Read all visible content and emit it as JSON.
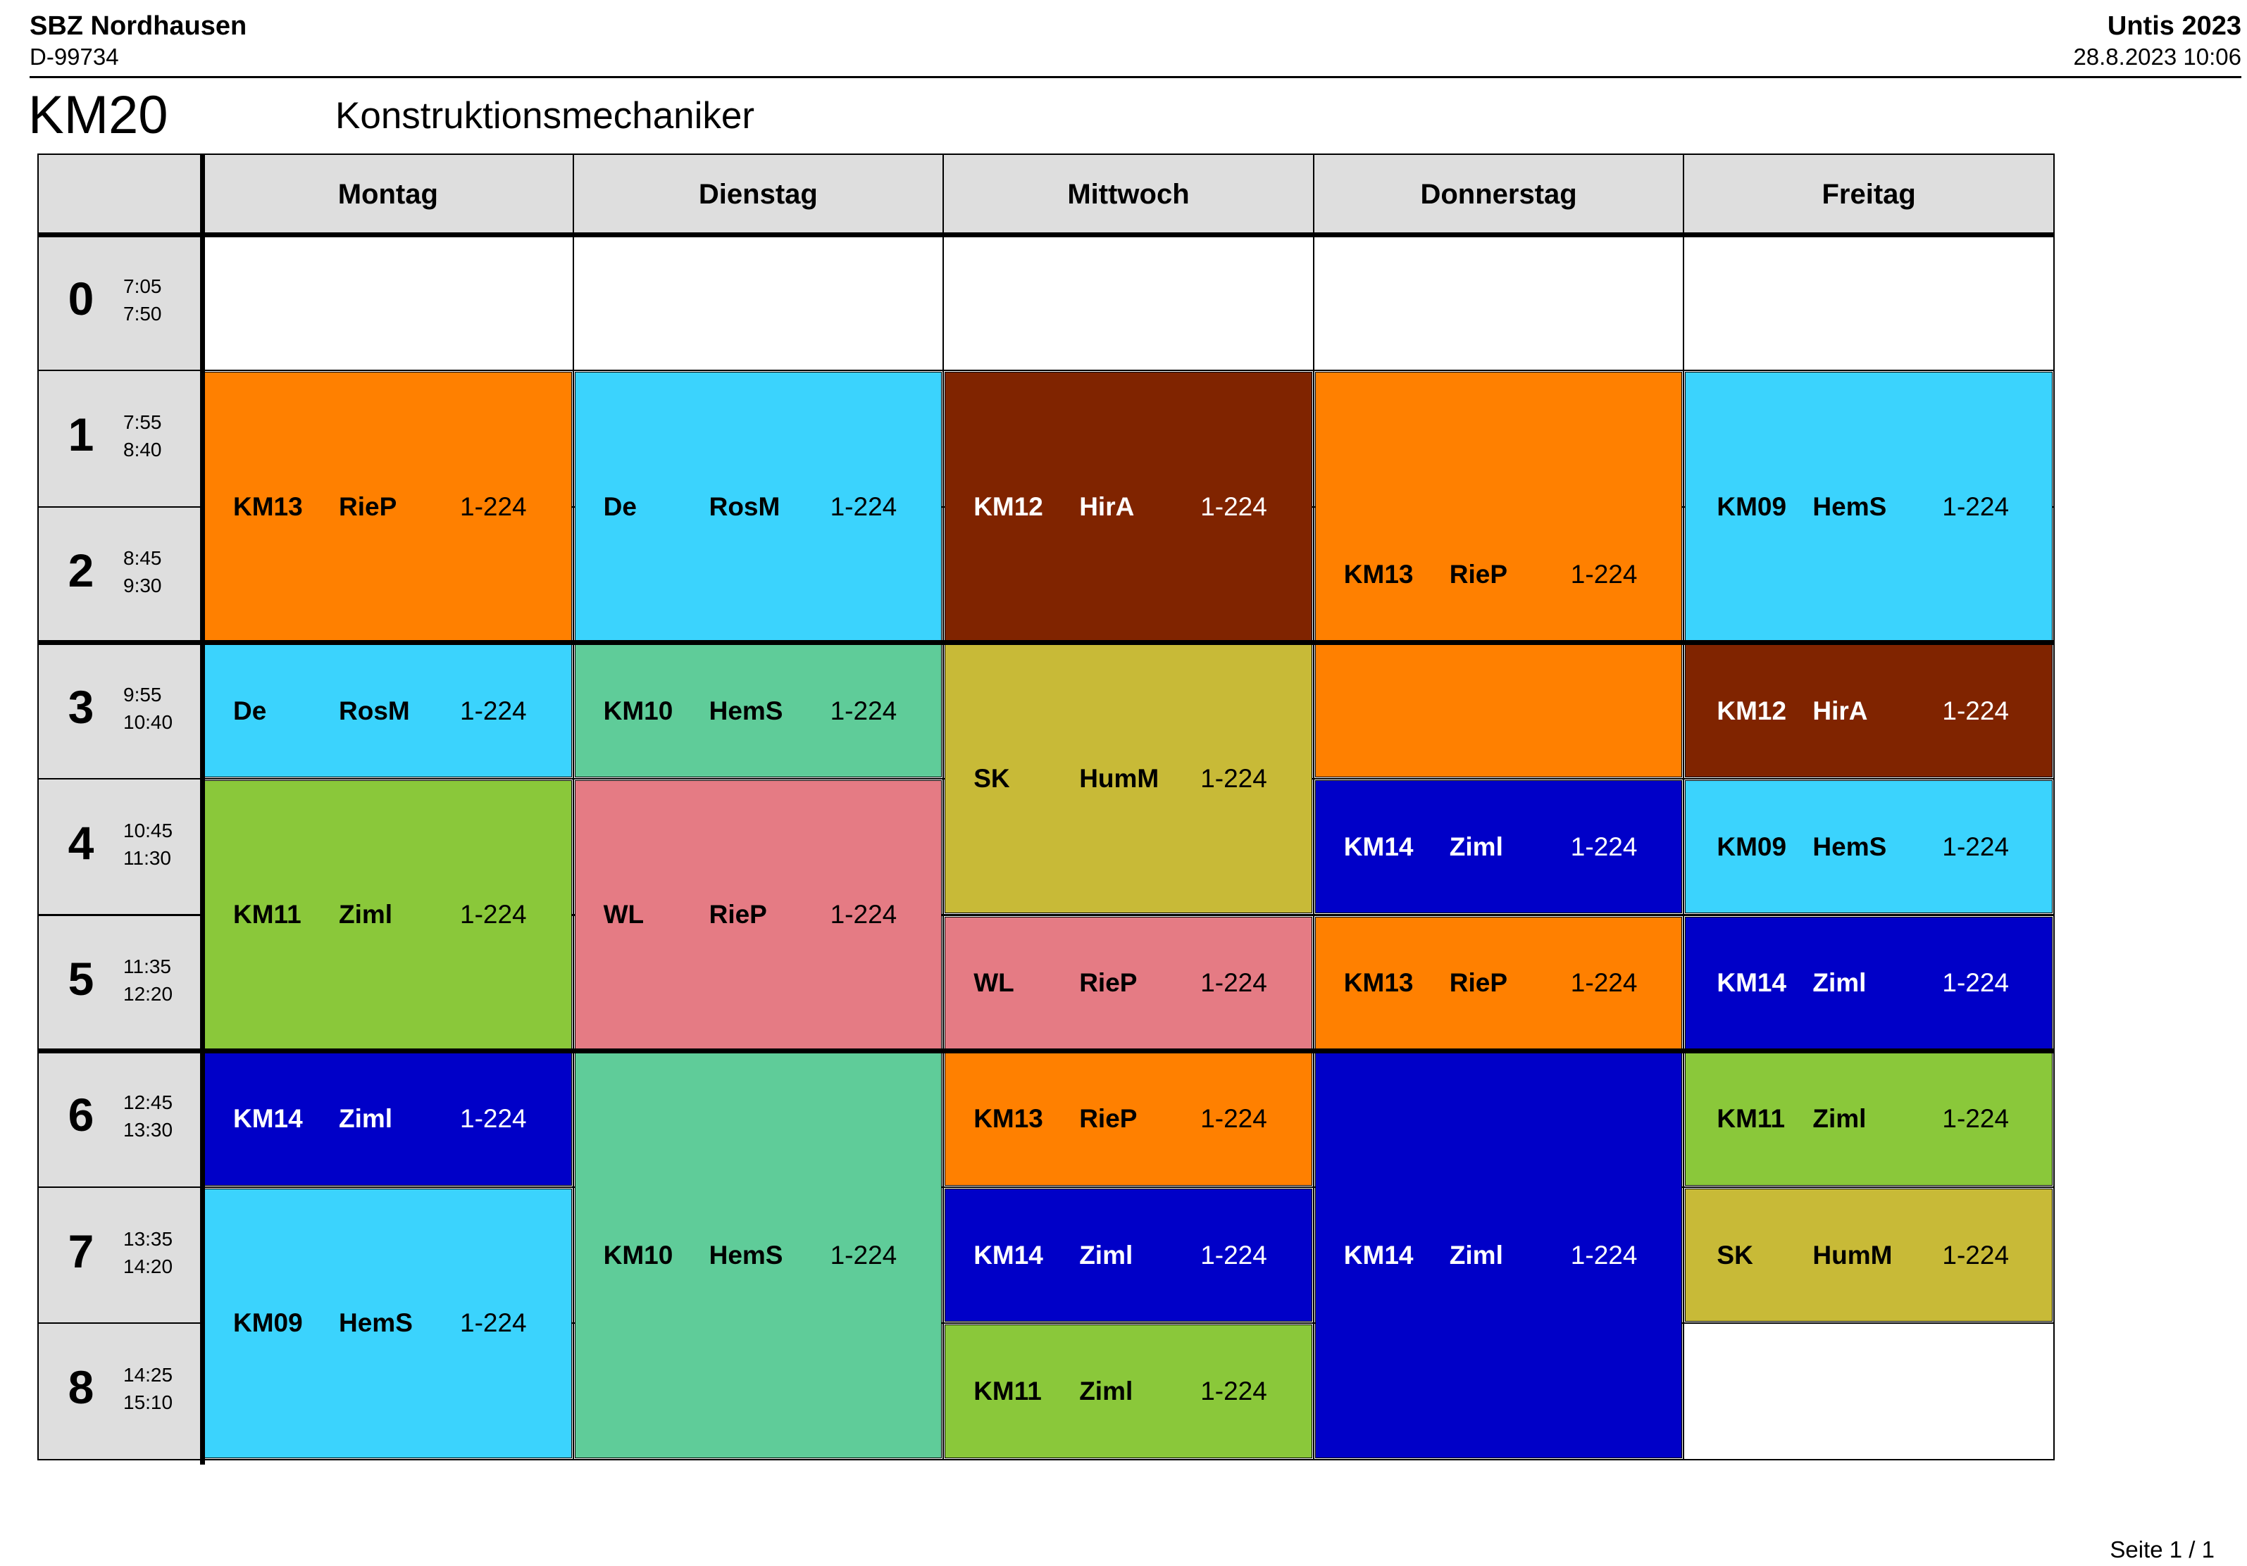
{
  "header": {
    "school": "SBZ Nordhausen",
    "postcode": "D-99734",
    "software": "Untis 2023",
    "printed": "28.8.2023  10:06"
  },
  "class_code": "KM20",
  "class_name": "Konstruktionsmechaniker",
  "days": [
    "Montag",
    "Dienstag",
    "Mittwoch",
    "Donnerstag",
    "Freitag"
  ],
  "periods": [
    {
      "num": "0",
      "start": "7:05",
      "end": "7:50"
    },
    {
      "num": "1",
      "start": "7:55",
      "end": "8:40"
    },
    {
      "num": "2",
      "start": "8:45",
      "end": "9:30"
    },
    {
      "num": "3",
      "start": "9:55",
      "end": "10:40"
    },
    {
      "num": "4",
      "start": "10:45",
      "end": "11:30"
    },
    {
      "num": "5",
      "start": "11:35",
      "end": "12:20"
    },
    {
      "num": "6",
      "start": "12:45",
      "end": "13:30"
    },
    {
      "num": "7",
      "start": "13:35",
      "end": "14:20"
    },
    {
      "num": "8",
      "start": "14:25",
      "end": "15:10"
    }
  ],
  "lessons": [
    {
      "day": 0,
      "start": 1,
      "span": 2,
      "subject": "KM13",
      "teacher": "RieP",
      "room": "1-224",
      "color": "#ff8000",
      "text_color": "#000000"
    },
    {
      "day": 0,
      "start": 3,
      "span": 1,
      "subject": "De",
      "teacher": "RosM",
      "room": "1-224",
      "color": "#3bd3fd",
      "text_color": "#000000"
    },
    {
      "day": 0,
      "start": 4,
      "span": 2,
      "subject": "KM11",
      "teacher": "Ziml",
      "room": "1-224",
      "color": "#8ac83a",
      "text_color": "#000000"
    },
    {
      "day": 0,
      "start": 6,
      "span": 1,
      "subject": "KM14",
      "teacher": "Ziml",
      "room": "1-224",
      "color": "#0000c8",
      "text_color": "#ffffff"
    },
    {
      "day": 0,
      "start": 7,
      "span": 2,
      "subject": "KM09",
      "teacher": "HemS",
      "room": "1-224",
      "color": "#3bd3fd",
      "text_color": "#000000"
    },
    {
      "day": 1,
      "start": 1,
      "span": 2,
      "subject": "De",
      "teacher": "RosM",
      "room": "1-224",
      "color": "#3bd3fd",
      "text_color": "#000000"
    },
    {
      "day": 1,
      "start": 3,
      "span": 1,
      "subject": "KM10",
      "teacher": "HemS",
      "room": "1-224",
      "color": "#5fcc99",
      "text_color": "#000000"
    },
    {
      "day": 1,
      "start": 4,
      "span": 2,
      "subject": "WL",
      "teacher": "RieP",
      "room": "1-224",
      "color": "#e57b84",
      "text_color": "#000000"
    },
    {
      "day": 1,
      "start": 6,
      "span": 3,
      "subject": "KM10",
      "teacher": "HemS",
      "room": "1-224",
      "color": "#5fcc99",
      "text_color": "#000000"
    },
    {
      "day": 2,
      "start": 1,
      "span": 2,
      "subject": "KM12",
      "teacher": "HirA",
      "room": "1-224",
      "color": "#802400",
      "text_color": "#ffffff"
    },
    {
      "day": 2,
      "start": 3,
      "span": 2,
      "subject": "SK",
      "teacher": "HumM",
      "room": "1-224",
      "color": "#c8ba37",
      "text_color": "#000000"
    },
    {
      "day": 2,
      "start": 5,
      "span": 1,
      "subject": "WL",
      "teacher": "RieP",
      "room": "1-224",
      "color": "#e57b84",
      "text_color": "#000000"
    },
    {
      "day": 2,
      "start": 6,
      "span": 1,
      "subject": "KM13",
      "teacher": "RieP",
      "room": "1-224",
      "color": "#ff8000",
      "text_color": "#000000"
    },
    {
      "day": 2,
      "start": 7,
      "span": 1,
      "subject": "KM14",
      "teacher": "Ziml",
      "room": "1-224",
      "color": "#0000c8",
      "text_color": "#ffffff"
    },
    {
      "day": 2,
      "start": 8,
      "span": 1,
      "subject": "KM11",
      "teacher": "Ziml",
      "room": "1-224",
      "color": "#8ac83a",
      "text_color": "#000000"
    },
    {
      "day": 3,
      "start": 1,
      "span": 3,
      "subject": "KM13",
      "teacher": "RieP",
      "room": "1-224",
      "color": "#ff8000",
      "text_color": "#000000"
    },
    {
      "day": 3,
      "start": 4,
      "span": 1,
      "subject": "KM14",
      "teacher": "Ziml",
      "room": "1-224",
      "color": "#0000c8",
      "text_color": "#ffffff"
    },
    {
      "day": 3,
      "start": 5,
      "span": 1,
      "subject": "KM13",
      "teacher": "RieP",
      "room": "1-224",
      "color": "#ff8000",
      "text_color": "#000000"
    },
    {
      "day": 3,
      "start": 6,
      "span": 3,
      "subject": "KM14",
      "teacher": "Ziml",
      "room": "1-224",
      "color": "#0000c8",
      "text_color": "#ffffff"
    },
    {
      "day": 4,
      "start": 1,
      "span": 2,
      "subject": "KM09",
      "teacher": "HemS",
      "room": "1-224",
      "color": "#3bd3fd",
      "text_color": "#000000"
    },
    {
      "day": 4,
      "start": 3,
      "span": 1,
      "subject": "KM12",
      "teacher": "HirA",
      "room": "1-224",
      "color": "#802400",
      "text_color": "#ffffff"
    },
    {
      "day": 4,
      "start": 4,
      "span": 1,
      "subject": "KM09",
      "teacher": "HemS",
      "room": "1-224",
      "color": "#3bd3fd",
      "text_color": "#000000"
    },
    {
      "day": 4,
      "start": 5,
      "span": 1,
      "subject": "KM14",
      "teacher": "Ziml",
      "room": "1-224",
      "color": "#0000c8",
      "text_color": "#ffffff"
    },
    {
      "day": 4,
      "start": 6,
      "span": 1,
      "subject": "KM11",
      "teacher": "Ziml",
      "room": "1-224",
      "color": "#8ac83a",
      "text_color": "#000000"
    },
    {
      "day": 4,
      "start": 7,
      "span": 1,
      "subject": "SK",
      "teacher": "HumM",
      "room": "1-224",
      "color": "#c8ba37",
      "text_color": "#000000"
    }
  ],
  "page": "Seite 1 / 1"
}
